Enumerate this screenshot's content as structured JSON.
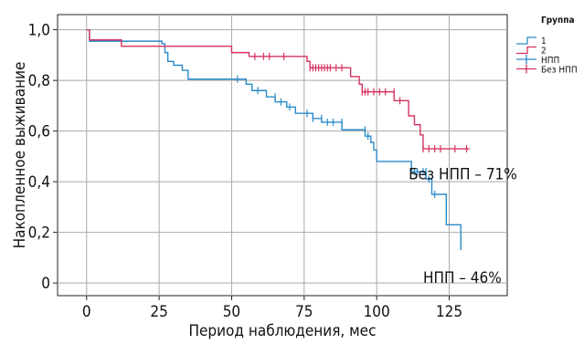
{
  "chart_data": {
    "type": "line",
    "subtype": "kaplan-meier-step",
    "xlabel": "Период наблюдения, мес",
    "ylabel": "Накопленное выживание",
    "xlim": [
      -10,
      145
    ],
    "ylim": [
      -0.05,
      1.06
    ],
    "x_ticks": [
      0,
      25,
      50,
      75,
      100,
      125
    ],
    "x_tick_labels": [
      "0",
      "25",
      "50",
      "75",
      "100",
      "125"
    ],
    "y_ticks": [
      0,
      0.2,
      0.4,
      0.6,
      0.8,
      1.0
    ],
    "y_tick_labels": [
      "0",
      "0,2",
      "0,4",
      "0,6",
      "0,8",
      "1,0"
    ],
    "grid": true,
    "legend": {
      "title": "Группа",
      "placement": "top-right",
      "entries": [
        {
          "label": "1",
          "kind": "step",
          "color": "#2a8bc9"
        },
        {
          "label": "2",
          "kind": "step",
          "color": "#d6335e"
        },
        {
          "label": "НПП",
          "kind": "censor",
          "color": "#2a8bc9"
        },
        {
          "label": "Без НПП",
          "kind": "censor",
          "color": "#d6335e"
        }
      ]
    },
    "series": [
      {
        "name": "1",
        "color": "#2a8bc9",
        "steps": [
          [
            0,
            1.0
          ],
          [
            1,
            0.955
          ],
          [
            26,
            0.945
          ],
          [
            27,
            0.91
          ],
          [
            28,
            0.875
          ],
          [
            30,
            0.86
          ],
          [
            33,
            0.84
          ],
          [
            35,
            0.805
          ],
          [
            55,
            0.785
          ],
          [
            57,
            0.76
          ],
          [
            62,
            0.735
          ],
          [
            65,
            0.715
          ],
          [
            69,
            0.695
          ],
          [
            72,
            0.67
          ],
          [
            78,
            0.65
          ],
          [
            81,
            0.635
          ],
          [
            88,
            0.605
          ],
          [
            96,
            0.58
          ],
          [
            98,
            0.555
          ],
          [
            99,
            0.525
          ],
          [
            100,
            0.48
          ],
          [
            112,
            0.44
          ],
          [
            117,
            0.41
          ],
          [
            119,
            0.35
          ],
          [
            124,
            0.23
          ],
          [
            129,
            0.23
          ],
          [
            129,
            0.13
          ]
        ],
        "end_x": 129,
        "censored": [
          [
            52,
            0.805
          ],
          [
            59,
            0.76
          ],
          [
            65,
            0.735
          ],
          [
            67,
            0.715
          ],
          [
            70,
            0.695
          ],
          [
            76,
            0.67
          ],
          [
            78,
            0.65
          ],
          [
            81,
            0.65
          ],
          [
            83,
            0.635
          ],
          [
            85,
            0.635
          ],
          [
            88,
            0.635
          ],
          [
            96,
            0.605
          ],
          [
            97,
            0.58
          ],
          [
            113,
            0.44
          ],
          [
            114,
            0.44
          ],
          [
            116,
            0.44
          ],
          [
            117,
            0.44
          ],
          [
            118,
            0.41
          ],
          [
            120,
            0.35
          ]
        ]
      },
      {
        "name": "2",
        "color": "#d6335e",
        "steps": [
          [
            0,
            1.0
          ],
          [
            1,
            0.96
          ],
          [
            12,
            0.935
          ],
          [
            50,
            0.91
          ],
          [
            56,
            0.895
          ],
          [
            76,
            0.875
          ],
          [
            77,
            0.85
          ],
          [
            91,
            0.815
          ],
          [
            94,
            0.785
          ],
          [
            95,
            0.755
          ],
          [
            106,
            0.72
          ],
          [
            111,
            0.66
          ],
          [
            113,
            0.625
          ],
          [
            115,
            0.585
          ],
          [
            116,
            0.53
          ]
        ],
        "end_x": 132,
        "censored": [
          [
            58,
            0.895
          ],
          [
            61,
            0.895
          ],
          [
            63,
            0.895
          ],
          [
            68,
            0.895
          ],
          [
            77,
            0.85
          ],
          [
            78,
            0.85
          ],
          [
            79,
            0.85
          ],
          [
            80,
            0.85
          ],
          [
            81,
            0.85
          ],
          [
            82,
            0.85
          ],
          [
            83,
            0.85
          ],
          [
            84,
            0.85
          ],
          [
            86,
            0.85
          ],
          [
            88,
            0.85
          ],
          [
            95,
            0.755
          ],
          [
            96,
            0.755
          ],
          [
            97,
            0.755
          ],
          [
            99,
            0.755
          ],
          [
            101,
            0.755
          ],
          [
            103,
            0.755
          ],
          [
            106,
            0.755
          ],
          [
            108,
            0.72
          ],
          [
            116,
            0.53
          ],
          [
            118,
            0.53
          ],
          [
            120,
            0.53
          ],
          [
            122,
            0.53
          ],
          [
            127,
            0.53
          ],
          [
            131,
            0.53
          ]
        ]
      }
    ],
    "annotations": [
      {
        "text": "Без НПП – 71%",
        "x": 111,
        "y": 0.41
      },
      {
        "text": "НПП – 46%",
        "x": 116,
        "y": 0.0
      }
    ]
  }
}
